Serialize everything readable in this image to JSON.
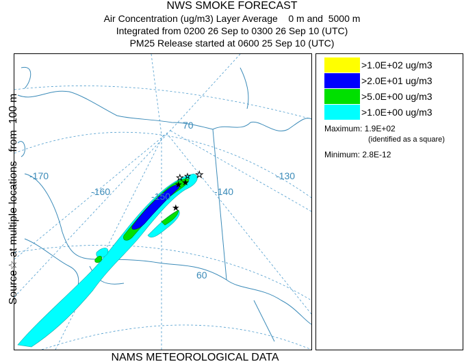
{
  "titles": [
    "NWS SMOKE FORECAST",
    "Air Concentration (ug/m3) Layer Average    0 m and  5000 m",
    "Integrated from 0200 26 Sep to 0300 26 Sep 10 (UTC)",
    "PM25 Release started at 0600 25 Sep 10 (UTC)"
  ],
  "bottom_label": "NAMS METEOROLOGICAL DATA",
  "side_label": "Source☆ at multiple locations   from  100 m",
  "map": {
    "lon_labels": [
      "-170",
      "-160",
      "-150",
      "-140",
      "-130"
    ],
    "lat_labels": [
      "70",
      "60"
    ],
    "colors": {
      "ocean_lines": "#3a8ab8",
      "grid": "#4a9acc",
      "land_lines": "#3a8ab8"
    }
  },
  "legend": {
    "items": [
      {
        "label": ">1.0E+02 ug/m3",
        "color": "#ffff00"
      },
      {
        "label": ">2.0E+01 ug/m3",
        "color": "#0000ff"
      },
      {
        "label": ">5.0E+00 ug/m3",
        "color": "#00e000"
      },
      {
        "label": ">1.0E+00 ug/m3",
        "color": "#00ffff"
      }
    ],
    "maximum": "Maximum: 1.9E+02",
    "maximum_note": "(identified as a square)",
    "minimum": "Minimum: 2.8E-12"
  }
}
